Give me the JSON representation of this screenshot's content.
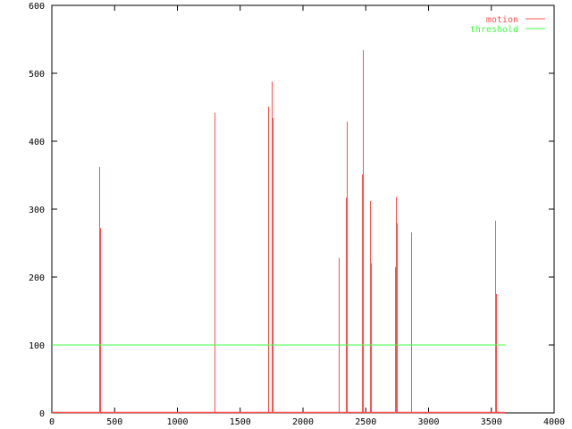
{
  "chart_data": {
    "type": "line",
    "title": "",
    "xlabel": "",
    "ylabel": "",
    "xlim": [
      0,
      4000
    ],
    "ylim": [
      0,
      600
    ],
    "xticks": [
      0,
      500,
      1000,
      1500,
      2000,
      2500,
      3000,
      3500,
      4000
    ],
    "yticks": [
      0,
      100,
      200,
      300,
      400,
      500,
      600
    ],
    "grid": false,
    "legend_position": "top-right",
    "series": [
      {
        "name": "motion",
        "color": "#ff5050",
        "style": "spikes",
        "points": [
          [
            377,
            362
          ],
          [
            385,
            272
          ],
          [
            1295,
            442
          ],
          [
            1722,
            451
          ],
          [
            1751,
            488
          ],
          [
            1755,
            434
          ],
          [
            2285,
            228
          ],
          [
            2345,
            317
          ],
          [
            2349,
            429
          ],
          [
            2470,
            351
          ],
          [
            2477,
            534
          ],
          [
            2534,
            312
          ],
          [
            2541,
            220
          ],
          [
            2730,
            215
          ],
          [
            2740,
            318
          ],
          [
            2745,
            279
          ],
          [
            2861,
            266
          ],
          [
            3530,
            283
          ],
          [
            3537,
            175
          ]
        ]
      },
      {
        "name": "threshold",
        "color": "#40ff40",
        "style": "line",
        "points": [
          [
            0,
            100
          ],
          [
            3610,
            100
          ]
        ]
      }
    ]
  }
}
